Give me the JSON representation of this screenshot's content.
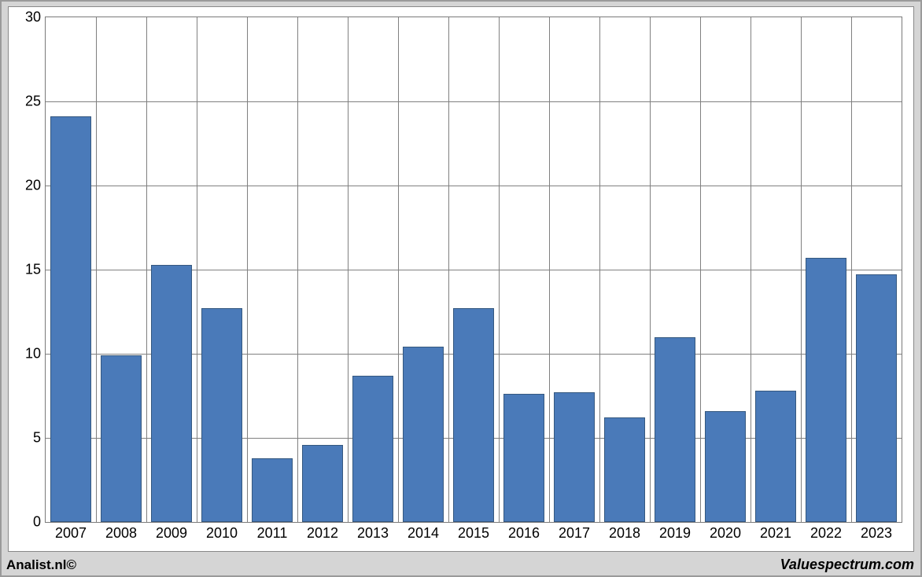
{
  "chart": {
    "type": "bar",
    "background_color": "#ffffff",
    "outer_background_color": "#d5d5d5",
    "border_color": "#7a7a7a",
    "grid_color": "#808080",
    "bar_color": "#4a7ab9",
    "bar_border_color": "#35587f",
    "tick_fontsize": 18,
    "tick_color": "#000000",
    "ylim": [
      0,
      30
    ],
    "ytick_step": 5,
    "bar_width_ratio": 0.82,
    "categories": [
      "2007",
      "2008",
      "2009",
      "2010",
      "2011",
      "2012",
      "2013",
      "2014",
      "2015",
      "2016",
      "2017",
      "2018",
      "2019",
      "2020",
      "2021",
      "2022",
      "2023"
    ],
    "values": [
      24.1,
      9.9,
      15.3,
      12.7,
      3.8,
      4.6,
      8.7,
      10.4,
      12.7,
      7.6,
      7.7,
      6.2,
      11.0,
      6.6,
      7.8,
      15.7,
      14.7
    ]
  },
  "footer": {
    "left": "Analist.nl©",
    "right": "Valuespectrum.com"
  }
}
